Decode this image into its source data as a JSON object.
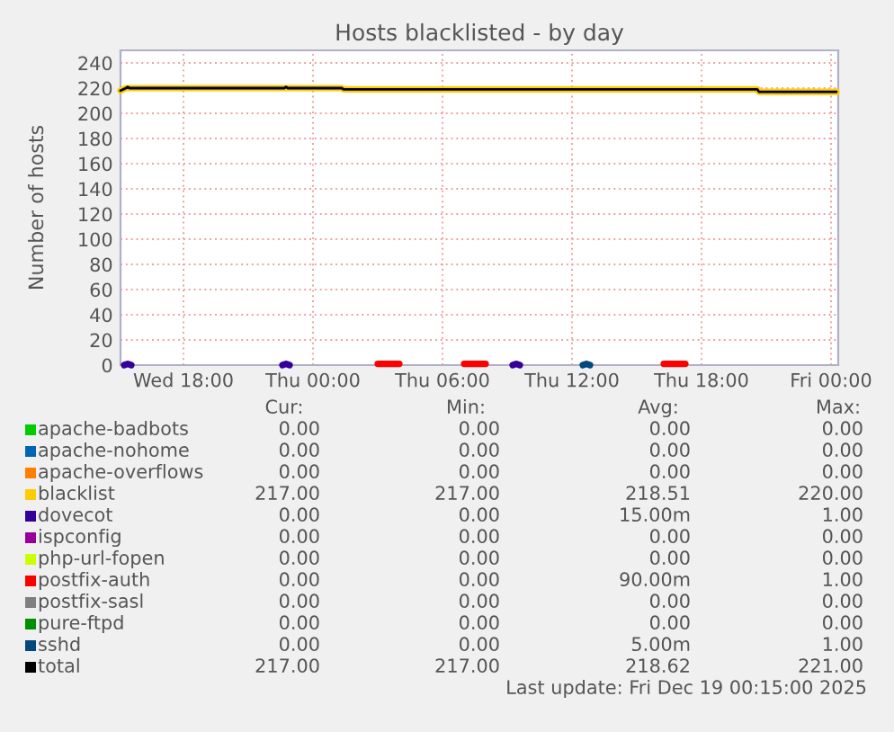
{
  "chart_data": {
    "type": "line",
    "title": "Hosts blacklisted - by day",
    "ylabel": "Number of hosts",
    "xlim": [
      "2025-12-17T15:05",
      "2025-12-19T00:20"
    ],
    "ylim": [
      0,
      250
    ],
    "xticks": [
      {
        "value": "2025-12-17T18:00",
        "label": "Wed 18:00"
      },
      {
        "value": "2025-12-18T00:00",
        "label": "Thu 00:00"
      },
      {
        "value": "2025-12-18T06:00",
        "label": "Thu 06:00"
      },
      {
        "value": "2025-12-18T12:00",
        "label": "Thu 12:00"
      },
      {
        "value": "2025-12-18T18:00",
        "label": "Thu 18:00"
      },
      {
        "value": "2025-12-19T00:00",
        "label": "Fri 00:00"
      }
    ],
    "yticks": [
      0,
      20,
      40,
      60,
      80,
      100,
      120,
      140,
      160,
      180,
      200,
      220,
      240
    ],
    "grid": true,
    "legend": "bottom",
    "marker": "none",
    "line_style": "solid",
    "series": [
      {
        "name": "apache-badbots",
        "color": "#00cc00",
        "values": [
          null
        ]
      },
      {
        "name": "apache-nohome",
        "color": "#0066b3",
        "values": [
          null
        ]
      },
      {
        "name": "apache-overflows",
        "color": "#ff8000",
        "values": [
          null
        ]
      },
      {
        "name": "blacklist",
        "color": "#ffcc00",
        "x": [
          "2025-12-17T15:05",
          "2025-12-17T15:20",
          "2025-12-18T01:20",
          "2025-12-18T01:25",
          "2025-12-18T20:35",
          "2025-12-18T20:40",
          "2025-12-19T00:15"
        ],
        "values": [
          218,
          220,
          220,
          219,
          219,
          217,
          217
        ]
      },
      {
        "name": "dovecot",
        "color": "#330099",
        "x": [
          "2025-12-17T15:15",
          "2025-12-17T15:25",
          "2025-12-17T15:35",
          "2025-12-17T19:00",
          "2025-12-17T22:35",
          "2025-12-17T22:45",
          "2025-12-17T22:55",
          "2025-12-18T04:00",
          "2025-12-18T09:15",
          "2025-12-18T09:25",
          "2025-12-18T09:35"
        ],
        "values": [
          0,
          1,
          0,
          null,
          0,
          1,
          0,
          null,
          0,
          1,
          0
        ]
      },
      {
        "name": "ispconfig",
        "color": "#990099",
        "values": [
          null
        ]
      },
      {
        "name": "php-url-fopen",
        "color": "#ccff00",
        "values": [
          null
        ]
      },
      {
        "name": "postfix-auth",
        "color": "#ff0000",
        "x": [
          "2025-12-18T03:00",
          "2025-12-18T04:00",
          "2025-12-18T05:30",
          "2025-12-18T07:00",
          "2025-12-18T08:00",
          "2025-12-18T12:00",
          "2025-12-18T16:15",
          "2025-12-18T17:15"
        ],
        "values": [
          1,
          1,
          null,
          1,
          1,
          null,
          1,
          1
        ]
      },
      {
        "name": "postfix-sasl",
        "color": "#808080",
        "values": [
          null
        ]
      },
      {
        "name": "pure-ftpd",
        "color": "#008f00",
        "values": [
          null
        ]
      },
      {
        "name": "sshd",
        "color": "#00487d",
        "x": [
          "2025-12-18T12:30",
          "2025-12-18T12:40",
          "2025-12-18T12:50"
        ],
        "values": [
          0,
          1,
          0
        ]
      },
      {
        "name": "total",
        "color": "#000000",
        "x": [
          "2025-12-17T15:05",
          "2025-12-17T15:20",
          "2025-12-17T15:25",
          "2025-12-17T15:30",
          "2025-12-17T22:40",
          "2025-12-17T22:45",
          "2025-12-17T22:50",
          "2025-12-18T01:20",
          "2025-12-18T01:25",
          "2025-12-18T20:35",
          "2025-12-18T20:40",
          "2025-12-19T00:15"
        ],
        "values": [
          218,
          220,
          221,
          220,
          220,
          221,
          220,
          220,
          219,
          219,
          217,
          217
        ]
      }
    ],
    "annotations": [
      "Cur:",
      "Min:",
      "Avg:",
      "Max:",
      "0.00",
      "0.00",
      "0.00",
      "0.00",
      "0.00",
      "0.00",
      "0.00",
      "0.00",
      "0.00",
      "0.00",
      "0.00",
      "0.00",
      "217.00",
      "217.00",
      "218.51",
      "220.00",
      "0.00",
      "0.00",
      "15.00m",
      "1.00",
      "0.00",
      "0.00",
      "0.00",
      "0.00",
      "0.00",
      "0.00",
      "0.00",
      "0.00",
      "0.00",
      "0.00",
      "90.00m",
      "1.00",
      "0.00",
      "0.00",
      "0.00",
      "0.00",
      "0.00",
      "0.00",
      "0.00",
      "0.00",
      "0.00",
      "0.00",
      "5.00m",
      "1.00",
      "217.00",
      "217.00",
      "218.62",
      "221.00",
      "Last update: Fri Dec 19 00:15:00 2025"
    ]
  }
}
